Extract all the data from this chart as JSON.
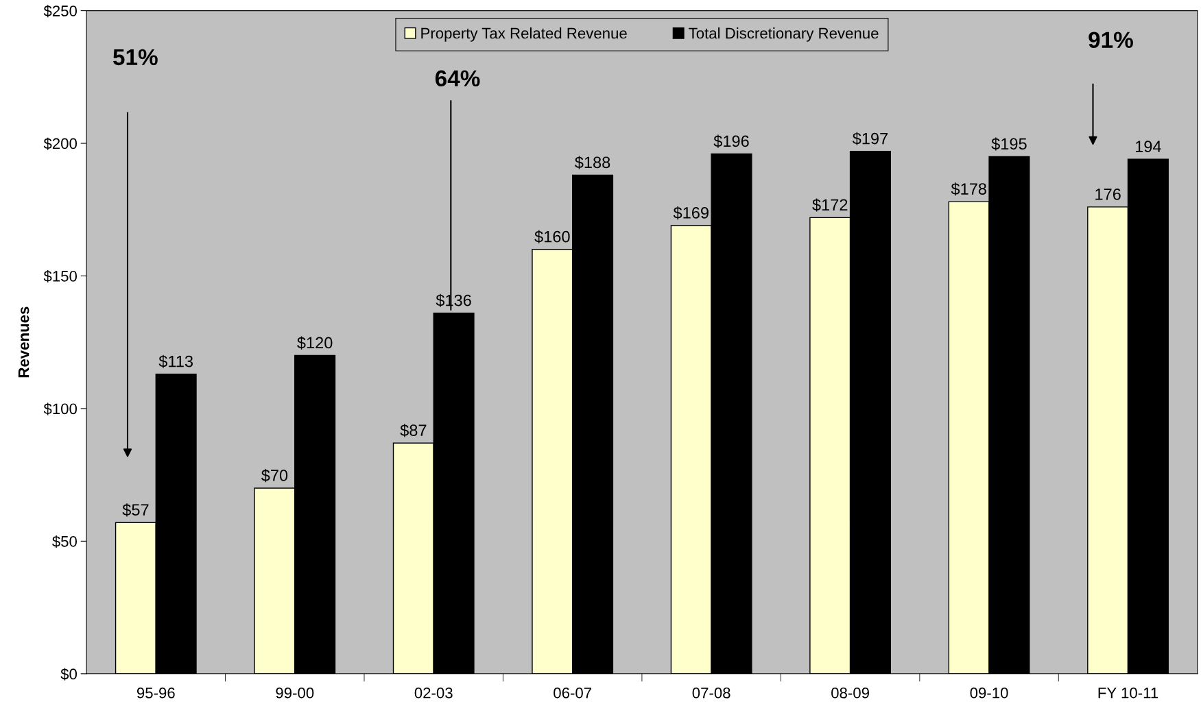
{
  "chart_data": {
    "type": "bar",
    "ylabel": "Revenues",
    "categories": [
      "95-96",
      "99-00",
      "02-03",
      "06-07",
      "07-08",
      "08-09",
      "09-10",
      "FY 10-11"
    ],
    "series": [
      {
        "name": "Property Tax Related Revenue",
        "color": "#ffffcc",
        "values": [
          57,
          70,
          87,
          160,
          169,
          172,
          178,
          176
        ],
        "value_labels": [
          "$57",
          "$70",
          "$87",
          "$160",
          "$169",
          "$172",
          "$178",
          "176"
        ]
      },
      {
        "name": "Total Discretionary Revenue",
        "color": "#000000",
        "values": [
          113,
          120,
          136,
          188,
          196,
          197,
          195,
          194
        ],
        "value_labels": [
          "$113",
          "$120",
          "$136",
          "$188",
          "$196",
          "$197",
          "$195",
          "194"
        ]
      }
    ],
    "ylim": [
      0,
      250
    ],
    "yticks": [
      {
        "value": 0,
        "label": "$0"
      },
      {
        "value": 50,
        "label": "$50"
      },
      {
        "value": 100,
        "label": "$100"
      },
      {
        "value": 150,
        "label": "$150"
      },
      {
        "value": 200,
        "label": "$200"
      },
      {
        "value": 250,
        "label": "$250"
      }
    ],
    "annotations": [
      "51%",
      "64%",
      "91%"
    ],
    "legend": "top",
    "grid": false
  }
}
